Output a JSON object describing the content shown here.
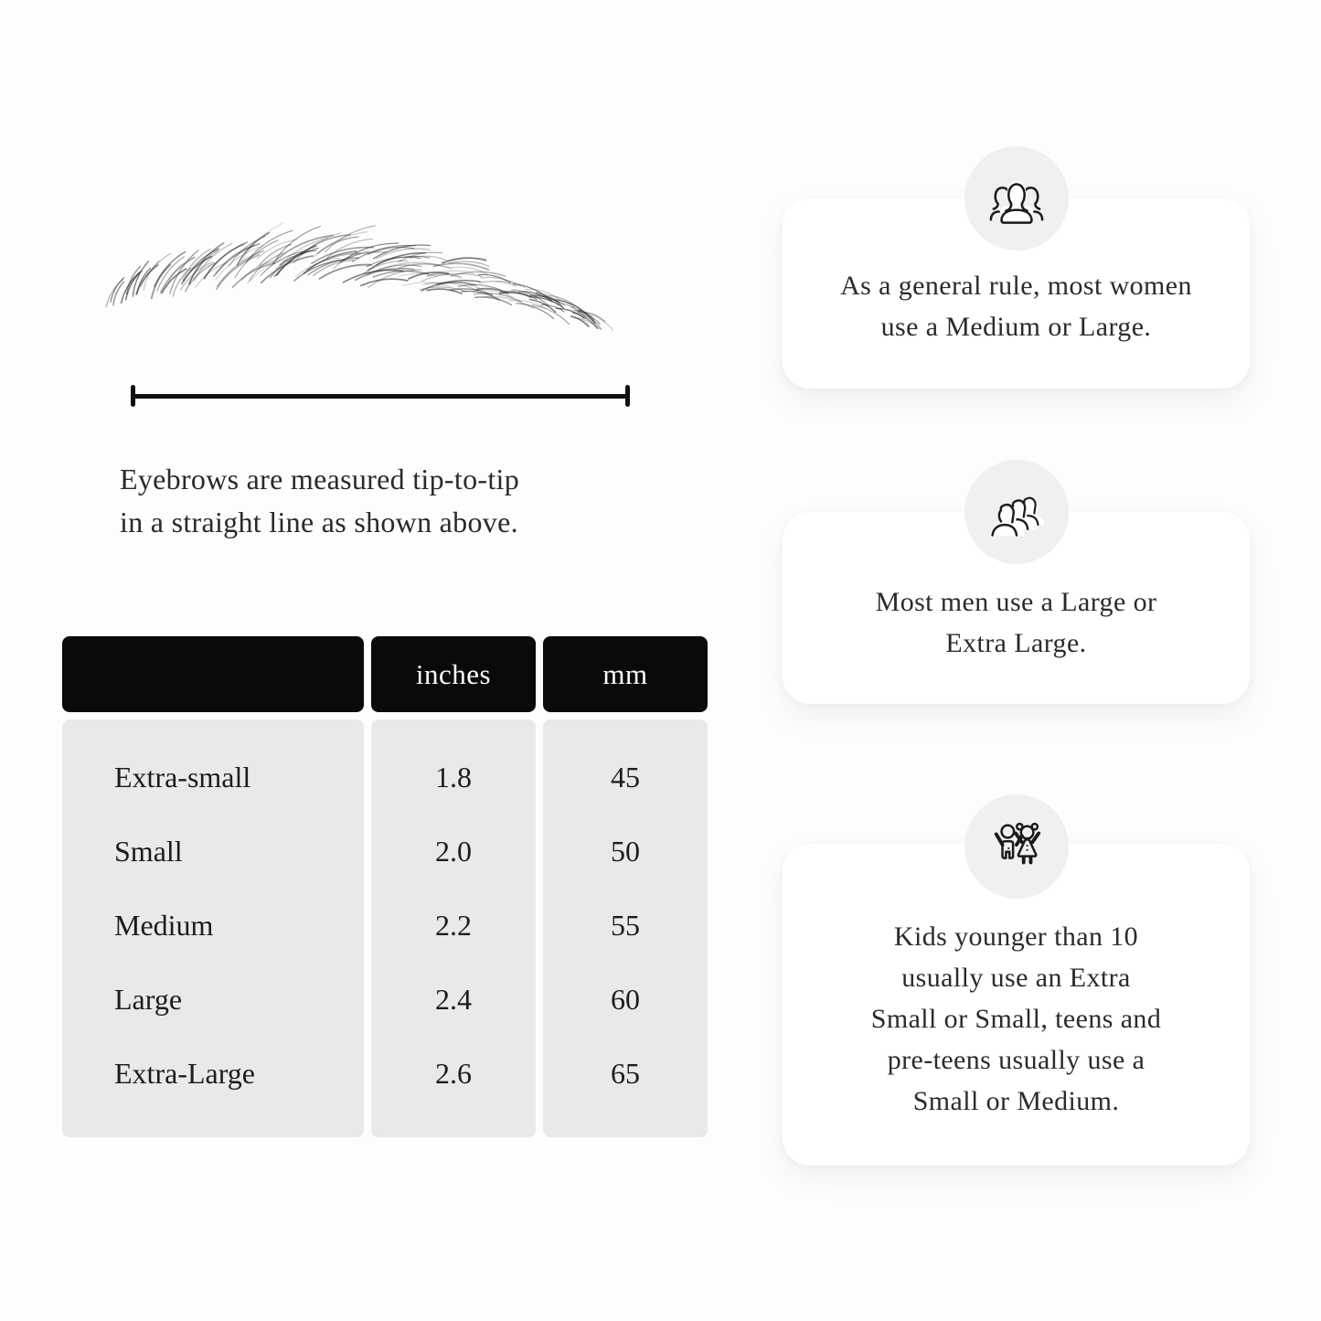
{
  "colors": {
    "page_bg": "#fdfdfd",
    "table_header_bg": "#0a0a0a",
    "table_header_text": "#ffffff",
    "table_body_bg": "#e9e9e9",
    "body_text": "#2a2a2a",
    "card_bg": "#ffffff",
    "badge_bg": "#f0f0f0",
    "icon_stroke": "#1b1b1b"
  },
  "diagram": {
    "illustration": "eyebrow-sketch",
    "caption_lines": [
      "Eyebrows are measured tip-to-tip",
      "in a straight line as shown above."
    ]
  },
  "table": {
    "headers": [
      "",
      "inches",
      "mm"
    ],
    "rows": [
      {
        "label": "Extra-small",
        "inches": "1.8",
        "mm": "45"
      },
      {
        "label": "Small",
        "inches": "2.0",
        "mm": "50"
      },
      {
        "label": "Medium",
        "inches": "2.2",
        "mm": "55"
      },
      {
        "label": "Large",
        "inches": "2.4",
        "mm": "60"
      },
      {
        "label": "Extra-Large",
        "inches": "2.6",
        "mm": "65"
      }
    ]
  },
  "cards": [
    {
      "icon": "women-group-icon",
      "lines": [
        "As a general rule, most women",
        "use a Medium or Large."
      ]
    },
    {
      "icon": "men-group-icon",
      "lines": [
        "Most men use a Large or",
        "Extra Large."
      ]
    },
    {
      "icon": "kids-icon",
      "lines": [
        "Kids younger than 10",
        "usually use an Extra",
        "Small or Small, teens and",
        "pre-teens usually use a",
        "Small or Medium."
      ]
    }
  ]
}
